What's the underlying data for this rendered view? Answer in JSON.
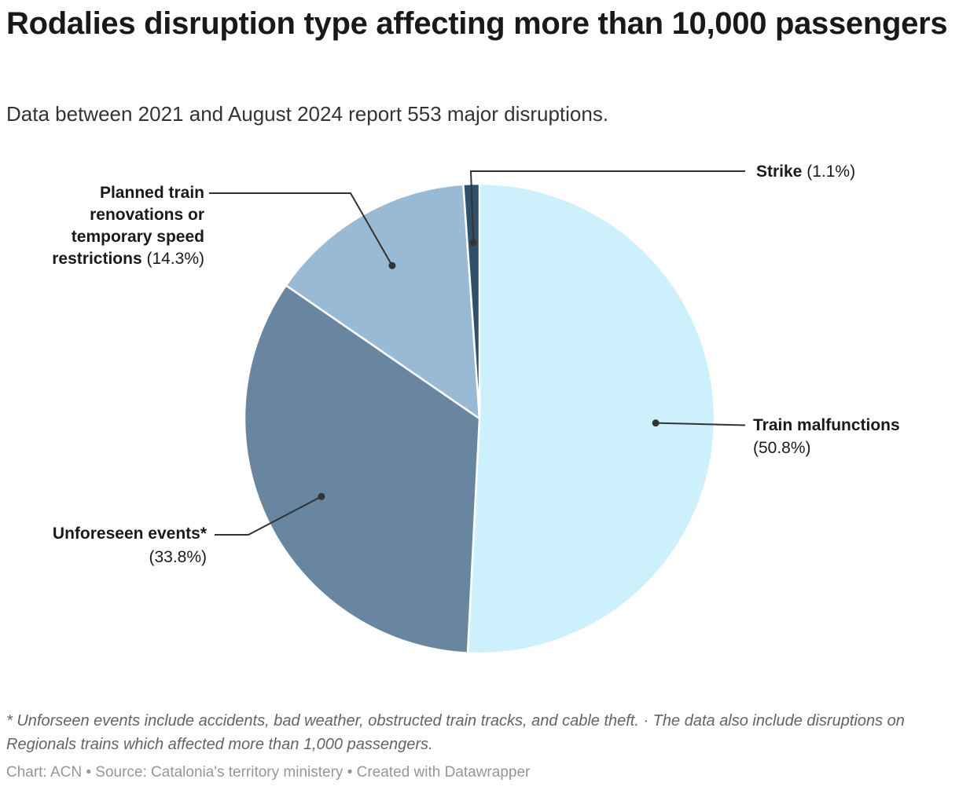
{
  "header": {
    "title": "Rodalies disruption type affecting more than 10,000 passengers",
    "subtitle": "Data between 2021 and August 2024 report 553 major disruptions."
  },
  "chart_data": {
    "type": "pie",
    "title": "Rodalies disruption type affecting more than 10,000 passengers",
    "subtitle": "Data between 2021 and August 2024 report 553 major disruptions.",
    "total_disruptions": 553,
    "unit": "percent",
    "direction": "clockwise",
    "start_angle_deg": 0,
    "slices": [
      {
        "name": "Train malfunctions",
        "value": 50.8,
        "color": "#cdf0fd"
      },
      {
        "name": "Unforeseen events*",
        "value": 33.8,
        "color": "#68869f"
      },
      {
        "name": "Planned train renovations or temporary speed restrictions",
        "value": 14.3,
        "color": "#98bad5"
      },
      {
        "name": "Strike",
        "value": 1.1,
        "color": "#2e5068"
      }
    ],
    "leader_line_color": "#333333"
  },
  "labels": {
    "strike": {
      "b": "Strike",
      "r": " (1.1%)"
    },
    "planned": {
      "l1": "Planned train",
      "l2": "renovations or",
      "l3": "temporary speed",
      "l4b": "restrictions",
      "l4r": " (14.3%)"
    },
    "train": {
      "b": "Train malfunctions",
      "r": "(50.8%)"
    },
    "unforeseen": {
      "b": "Unforeseen events*",
      "r": "(33.8%)"
    }
  },
  "footer": {
    "footnote": "* Unforseen events include accidents, bad weather, obstructed train tracks, and cable theft. · The data also include disruptions on Regionals trains which affected more than 1,000 passengers.",
    "byline": "Chart: ACN • Source: Catalonia's territory ministery • Created with Datawrapper"
  }
}
